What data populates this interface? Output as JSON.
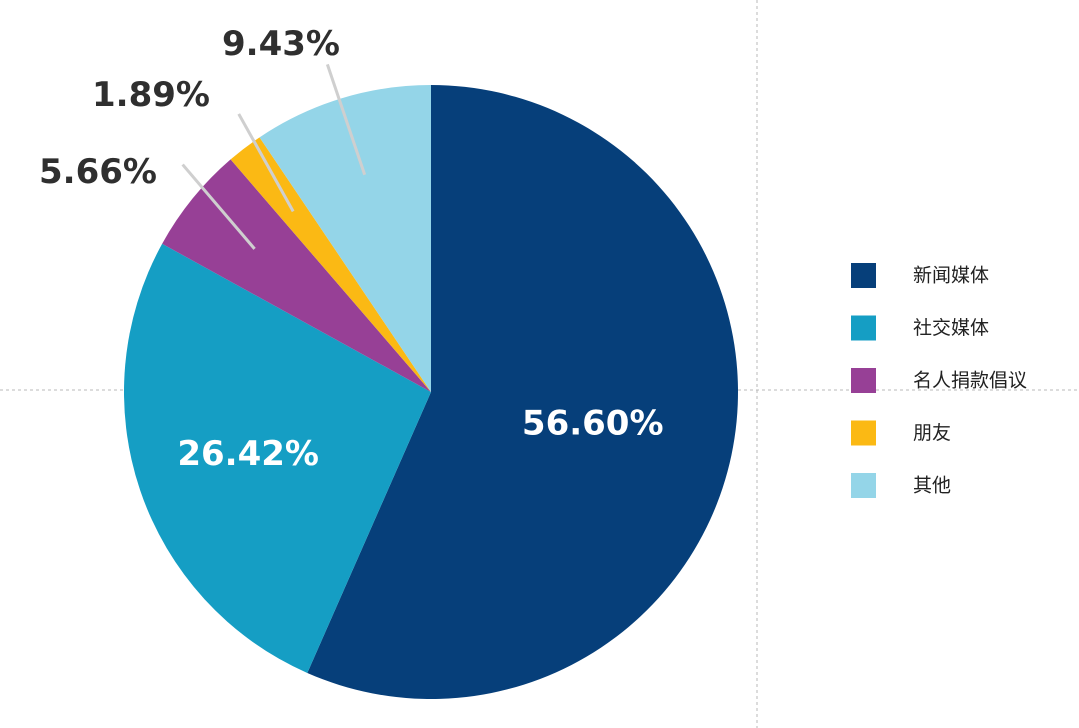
{
  "chart_data": {
    "type": "pie",
    "title": "",
    "start_angle_deg": 0,
    "direction": "clockwise",
    "legend_position": "right",
    "slices": [
      {
        "name": "新闻媒体",
        "value": 56.6,
        "label": "56.60%",
        "color": "#063f7a",
        "label_placement": "inside"
      },
      {
        "name": "社交媒体",
        "value": 26.42,
        "label": "26.42%",
        "color": "#159ec4",
        "label_placement": "inside"
      },
      {
        "name": "名人捐款倡议",
        "value": 5.66,
        "label": "5.66%",
        "color": "#974096",
        "label_placement": "outside"
      },
      {
        "name": "朋友",
        "value": 1.89,
        "label": "1.89%",
        "color": "#fbb914",
        "label_placement": "outside"
      },
      {
        "name": "其他",
        "value": 9.43,
        "label": "9.43%",
        "color": "#94d5e8",
        "label_placement": "outside"
      }
    ]
  }
}
